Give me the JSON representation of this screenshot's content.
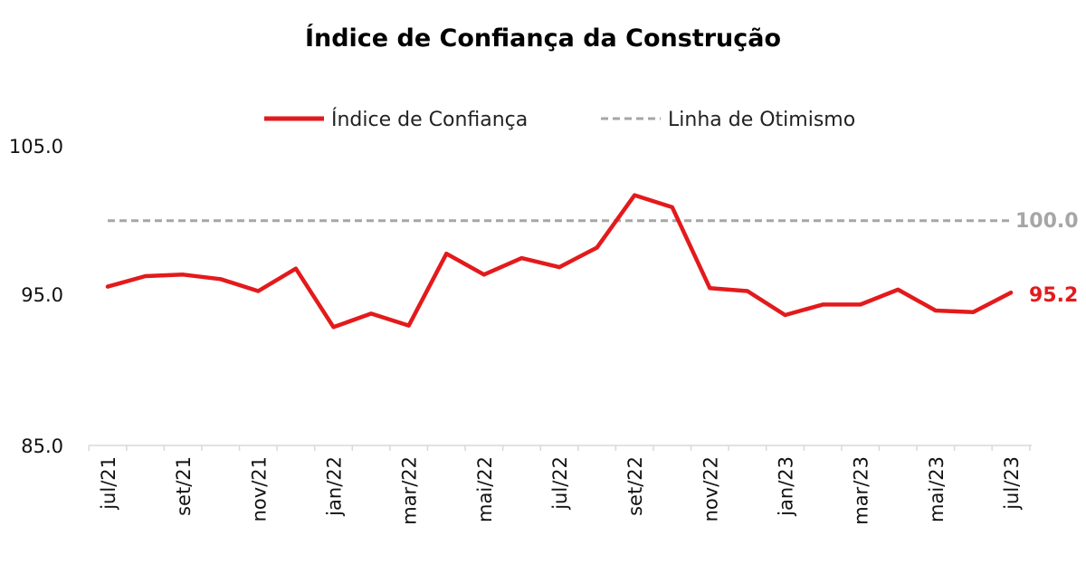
{
  "chart_data": {
    "type": "line",
    "title": "Índice de Confiança da Construção",
    "categories": [
      "jul/21",
      "ago/21",
      "set/21",
      "out/21",
      "nov/21",
      "dez/21",
      "jan/22",
      "fev/22",
      "mar/22",
      "abr/22",
      "mai/22",
      "jun/22",
      "jul/22",
      "ago/22",
      "set/22",
      "out/22",
      "nov/22",
      "dez/22",
      "jan/23",
      "fev/23",
      "mar/23",
      "abr/23",
      "mai/23",
      "jun/23",
      "jul/23"
    ],
    "tick_labels": [
      "jul/21",
      "set/21",
      "nov/21",
      "jan/22",
      "mar/22",
      "mai/22",
      "jul/22",
      "set/22",
      "nov/22",
      "jan/23",
      "mar/23",
      "mai/23",
      "jul/23"
    ],
    "series": [
      {
        "name": "Índice de Confiança",
        "color": "#e31a1c",
        "values": [
          95.6,
          96.3,
          96.4,
          96.1,
          95.3,
          96.8,
          92.9,
          93.8,
          93.0,
          97.8,
          96.4,
          97.5,
          96.9,
          98.2,
          101.7,
          100.9,
          95.5,
          95.3,
          93.7,
          94.4,
          94.4,
          95.4,
          94.0,
          93.9,
          95.2
        ]
      }
    ],
    "reference_line": {
      "name": "Linha de Otimismo",
      "value": 100.0,
      "label": "100.0",
      "color": "#a6a6a6",
      "style": "dashed"
    },
    "last_value_label": "95.2",
    "y_ticks": [
      "105.0",
      "95.0",
      "85.0"
    ],
    "ylim": [
      85,
      105
    ],
    "xlabel": "",
    "ylabel": "",
    "grid": false,
    "legend": "top"
  }
}
